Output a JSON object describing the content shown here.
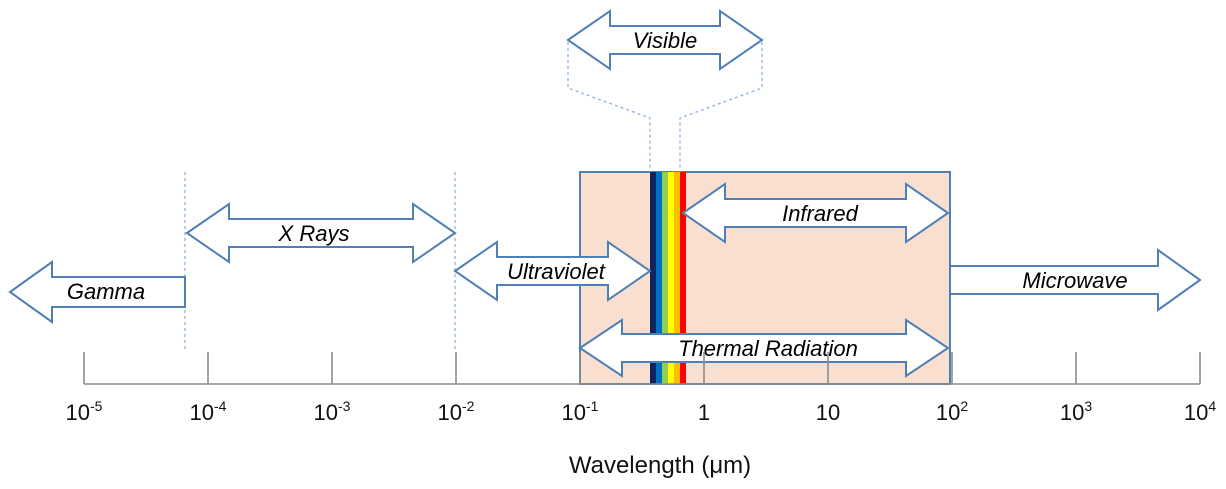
{
  "diagram": {
    "axis": {
      "ticks": [
        {
          "base": "10",
          "exp": "-5"
        },
        {
          "base": "10",
          "exp": "-4"
        },
        {
          "base": "10",
          "exp": "-3"
        },
        {
          "base": "10",
          "exp": "-2"
        },
        {
          "base": "10",
          "exp": "-1"
        },
        {
          "base": "1",
          "exp": ""
        },
        {
          "base": "10",
          "exp": ""
        },
        {
          "base": "10",
          "exp": "2"
        },
        {
          "base": "10",
          "exp": "3"
        },
        {
          "base": "10",
          "exp": "4"
        }
      ],
      "title": "Wavelength (μm)"
    },
    "bands": {
      "gamma": "Gamma",
      "xrays": "X Rays",
      "ultraviolet": "Ultraviolet",
      "visible": "Visible",
      "infrared": "Infrared",
      "thermal": "Thermal Radiation",
      "microwave": "Microwave"
    },
    "spectrum_colors": [
      "#0d2461",
      "#0070c0",
      "#92d050",
      "#ffff00",
      "#ffc000",
      "#ff0000"
    ],
    "region_fill": "#f9dfcf",
    "outline_color": "#4f7fb5"
  }
}
